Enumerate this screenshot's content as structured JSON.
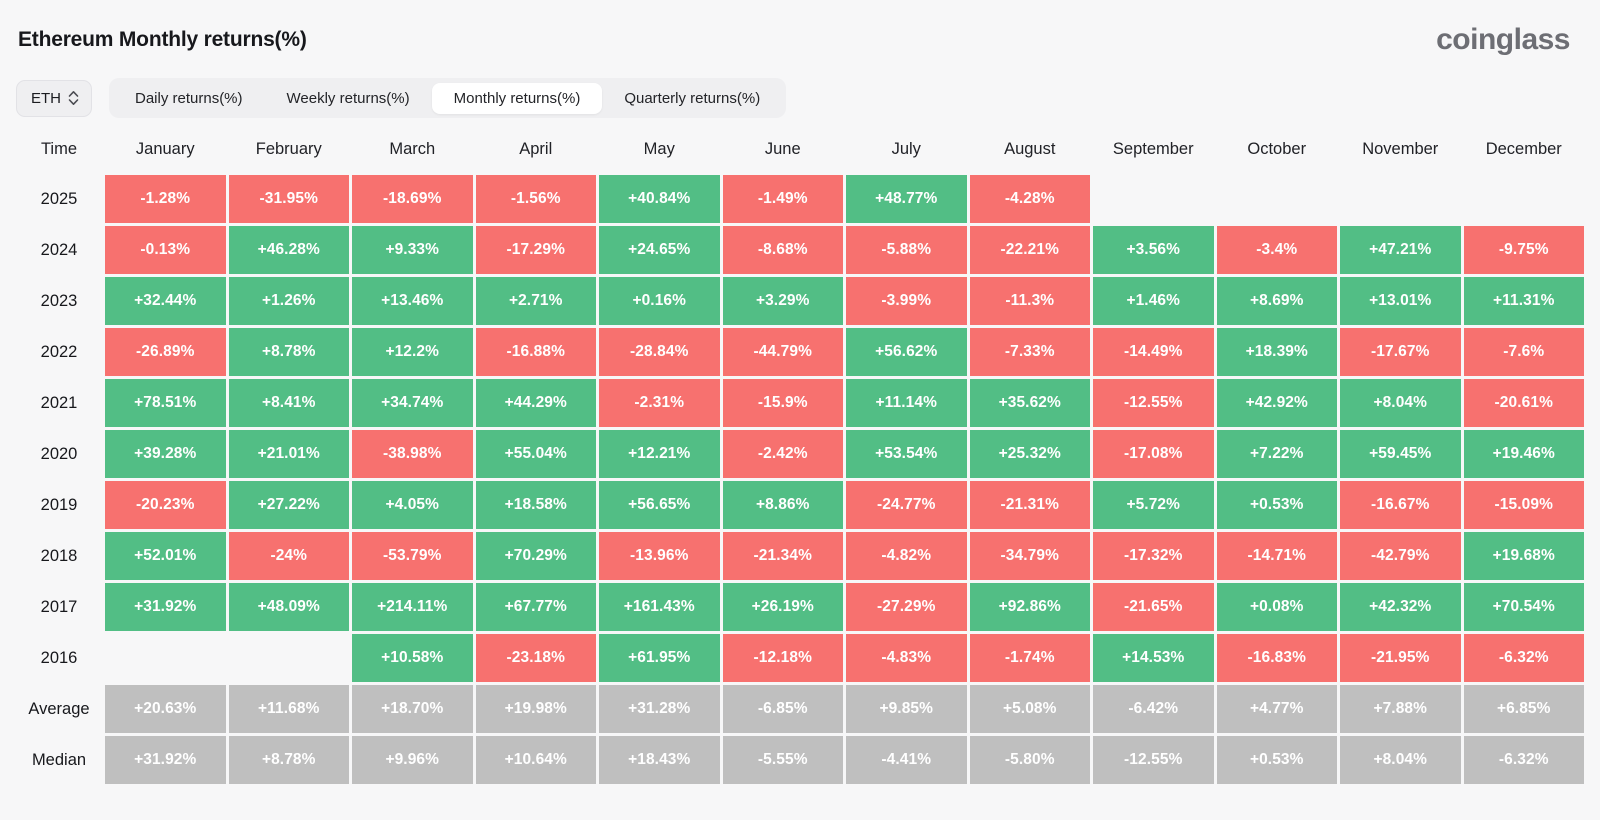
{
  "header": {
    "title": "Ethereum Monthly returns(%)",
    "logo": "coinglass"
  },
  "controls": {
    "symbol_select": {
      "value": "ETH",
      "icon": "sort-updown-icon"
    },
    "tabs": [
      {
        "label": "Daily returns(%)",
        "active": false
      },
      {
        "label": "Weekly returns(%)",
        "active": false
      },
      {
        "label": "Monthly returns(%)",
        "active": true
      },
      {
        "label": "Quarterly returns(%)",
        "active": false
      }
    ]
  },
  "colors": {
    "positive": "#52BE85",
    "negative": "#F7716F",
    "summary": "#BFBFBF",
    "background": "#f7f7f8"
  },
  "chart_data": {
    "type": "heatmap",
    "title": "Ethereum Monthly returns(%)",
    "columns": [
      "Time",
      "January",
      "February",
      "March",
      "April",
      "May",
      "June",
      "July",
      "August",
      "September",
      "October",
      "November",
      "December"
    ],
    "rows": [
      {
        "label": "2025",
        "type": "year",
        "values": [
          "-1.28%",
          "-31.95%",
          "-18.69%",
          "-1.56%",
          "+40.84%",
          "-1.49%",
          "+48.77%",
          "-4.28%",
          null,
          null,
          null,
          null
        ]
      },
      {
        "label": "2024",
        "type": "year",
        "values": [
          "-0.13%",
          "+46.28%",
          "+9.33%",
          "-17.29%",
          "+24.65%",
          "-8.68%",
          "-5.88%",
          "-22.21%",
          "+3.56%",
          "-3.4%",
          "+47.21%",
          "-9.75%"
        ]
      },
      {
        "label": "2023",
        "type": "year",
        "values": [
          "+32.44%",
          "+1.26%",
          "+13.46%",
          "+2.71%",
          "+0.16%",
          "+3.29%",
          "-3.99%",
          "-11.3%",
          "+1.46%",
          "+8.69%",
          "+13.01%",
          "+11.31%"
        ]
      },
      {
        "label": "2022",
        "type": "year",
        "values": [
          "-26.89%",
          "+8.78%",
          "+12.2%",
          "-16.88%",
          "-28.84%",
          "-44.79%",
          "+56.62%",
          "-7.33%",
          "-14.49%",
          "+18.39%",
          "-17.67%",
          "-7.6%"
        ]
      },
      {
        "label": "2021",
        "type": "year",
        "values": [
          "+78.51%",
          "+8.41%",
          "+34.74%",
          "+44.29%",
          "-2.31%",
          "-15.9%",
          "+11.14%",
          "+35.62%",
          "-12.55%",
          "+42.92%",
          "+8.04%",
          "-20.61%"
        ]
      },
      {
        "label": "2020",
        "type": "year",
        "values": [
          "+39.28%",
          "+21.01%",
          "-38.98%",
          "+55.04%",
          "+12.21%",
          "-2.42%",
          "+53.54%",
          "+25.32%",
          "-17.08%",
          "+7.22%",
          "+59.45%",
          "+19.46%"
        ]
      },
      {
        "label": "2019",
        "type": "year",
        "values": [
          "-20.23%",
          "+27.22%",
          "+4.05%",
          "+18.58%",
          "+56.65%",
          "+8.86%",
          "-24.77%",
          "-21.31%",
          "+5.72%",
          "+0.53%",
          "-16.67%",
          "-15.09%"
        ]
      },
      {
        "label": "2018",
        "type": "year",
        "values": [
          "+52.01%",
          "-24%",
          "-53.79%",
          "+70.29%",
          "-13.96%",
          "-21.34%",
          "-4.82%",
          "-34.79%",
          "-17.32%",
          "-14.71%",
          "-42.79%",
          "+19.68%"
        ]
      },
      {
        "label": "2017",
        "type": "year",
        "values": [
          "+31.92%",
          "+48.09%",
          "+214.11%",
          "+67.77%",
          "+161.43%",
          "+26.19%",
          "-27.29%",
          "+92.86%",
          "-21.65%",
          "+0.08%",
          "+42.32%",
          "+70.54%"
        ]
      },
      {
        "label": "2016",
        "type": "year",
        "values": [
          null,
          null,
          "+10.58%",
          "-23.18%",
          "+61.95%",
          "-12.18%",
          "-4.83%",
          "-1.74%",
          "+14.53%",
          "-16.83%",
          "-21.95%",
          "-6.32%"
        ]
      },
      {
        "label": "Average",
        "type": "summary",
        "values": [
          "+20.63%",
          "+11.68%",
          "+18.70%",
          "+19.98%",
          "+31.28%",
          "-6.85%",
          "+9.85%",
          "+5.08%",
          "-6.42%",
          "+4.77%",
          "+7.88%",
          "+6.85%"
        ]
      },
      {
        "label": "Median",
        "type": "summary",
        "values": [
          "+31.92%",
          "+8.78%",
          "+9.96%",
          "+10.64%",
          "+18.43%",
          "-5.55%",
          "-4.41%",
          "-5.80%",
          "-12.55%",
          "+0.53%",
          "+8.04%",
          "-6.32%"
        ]
      }
    ]
  }
}
